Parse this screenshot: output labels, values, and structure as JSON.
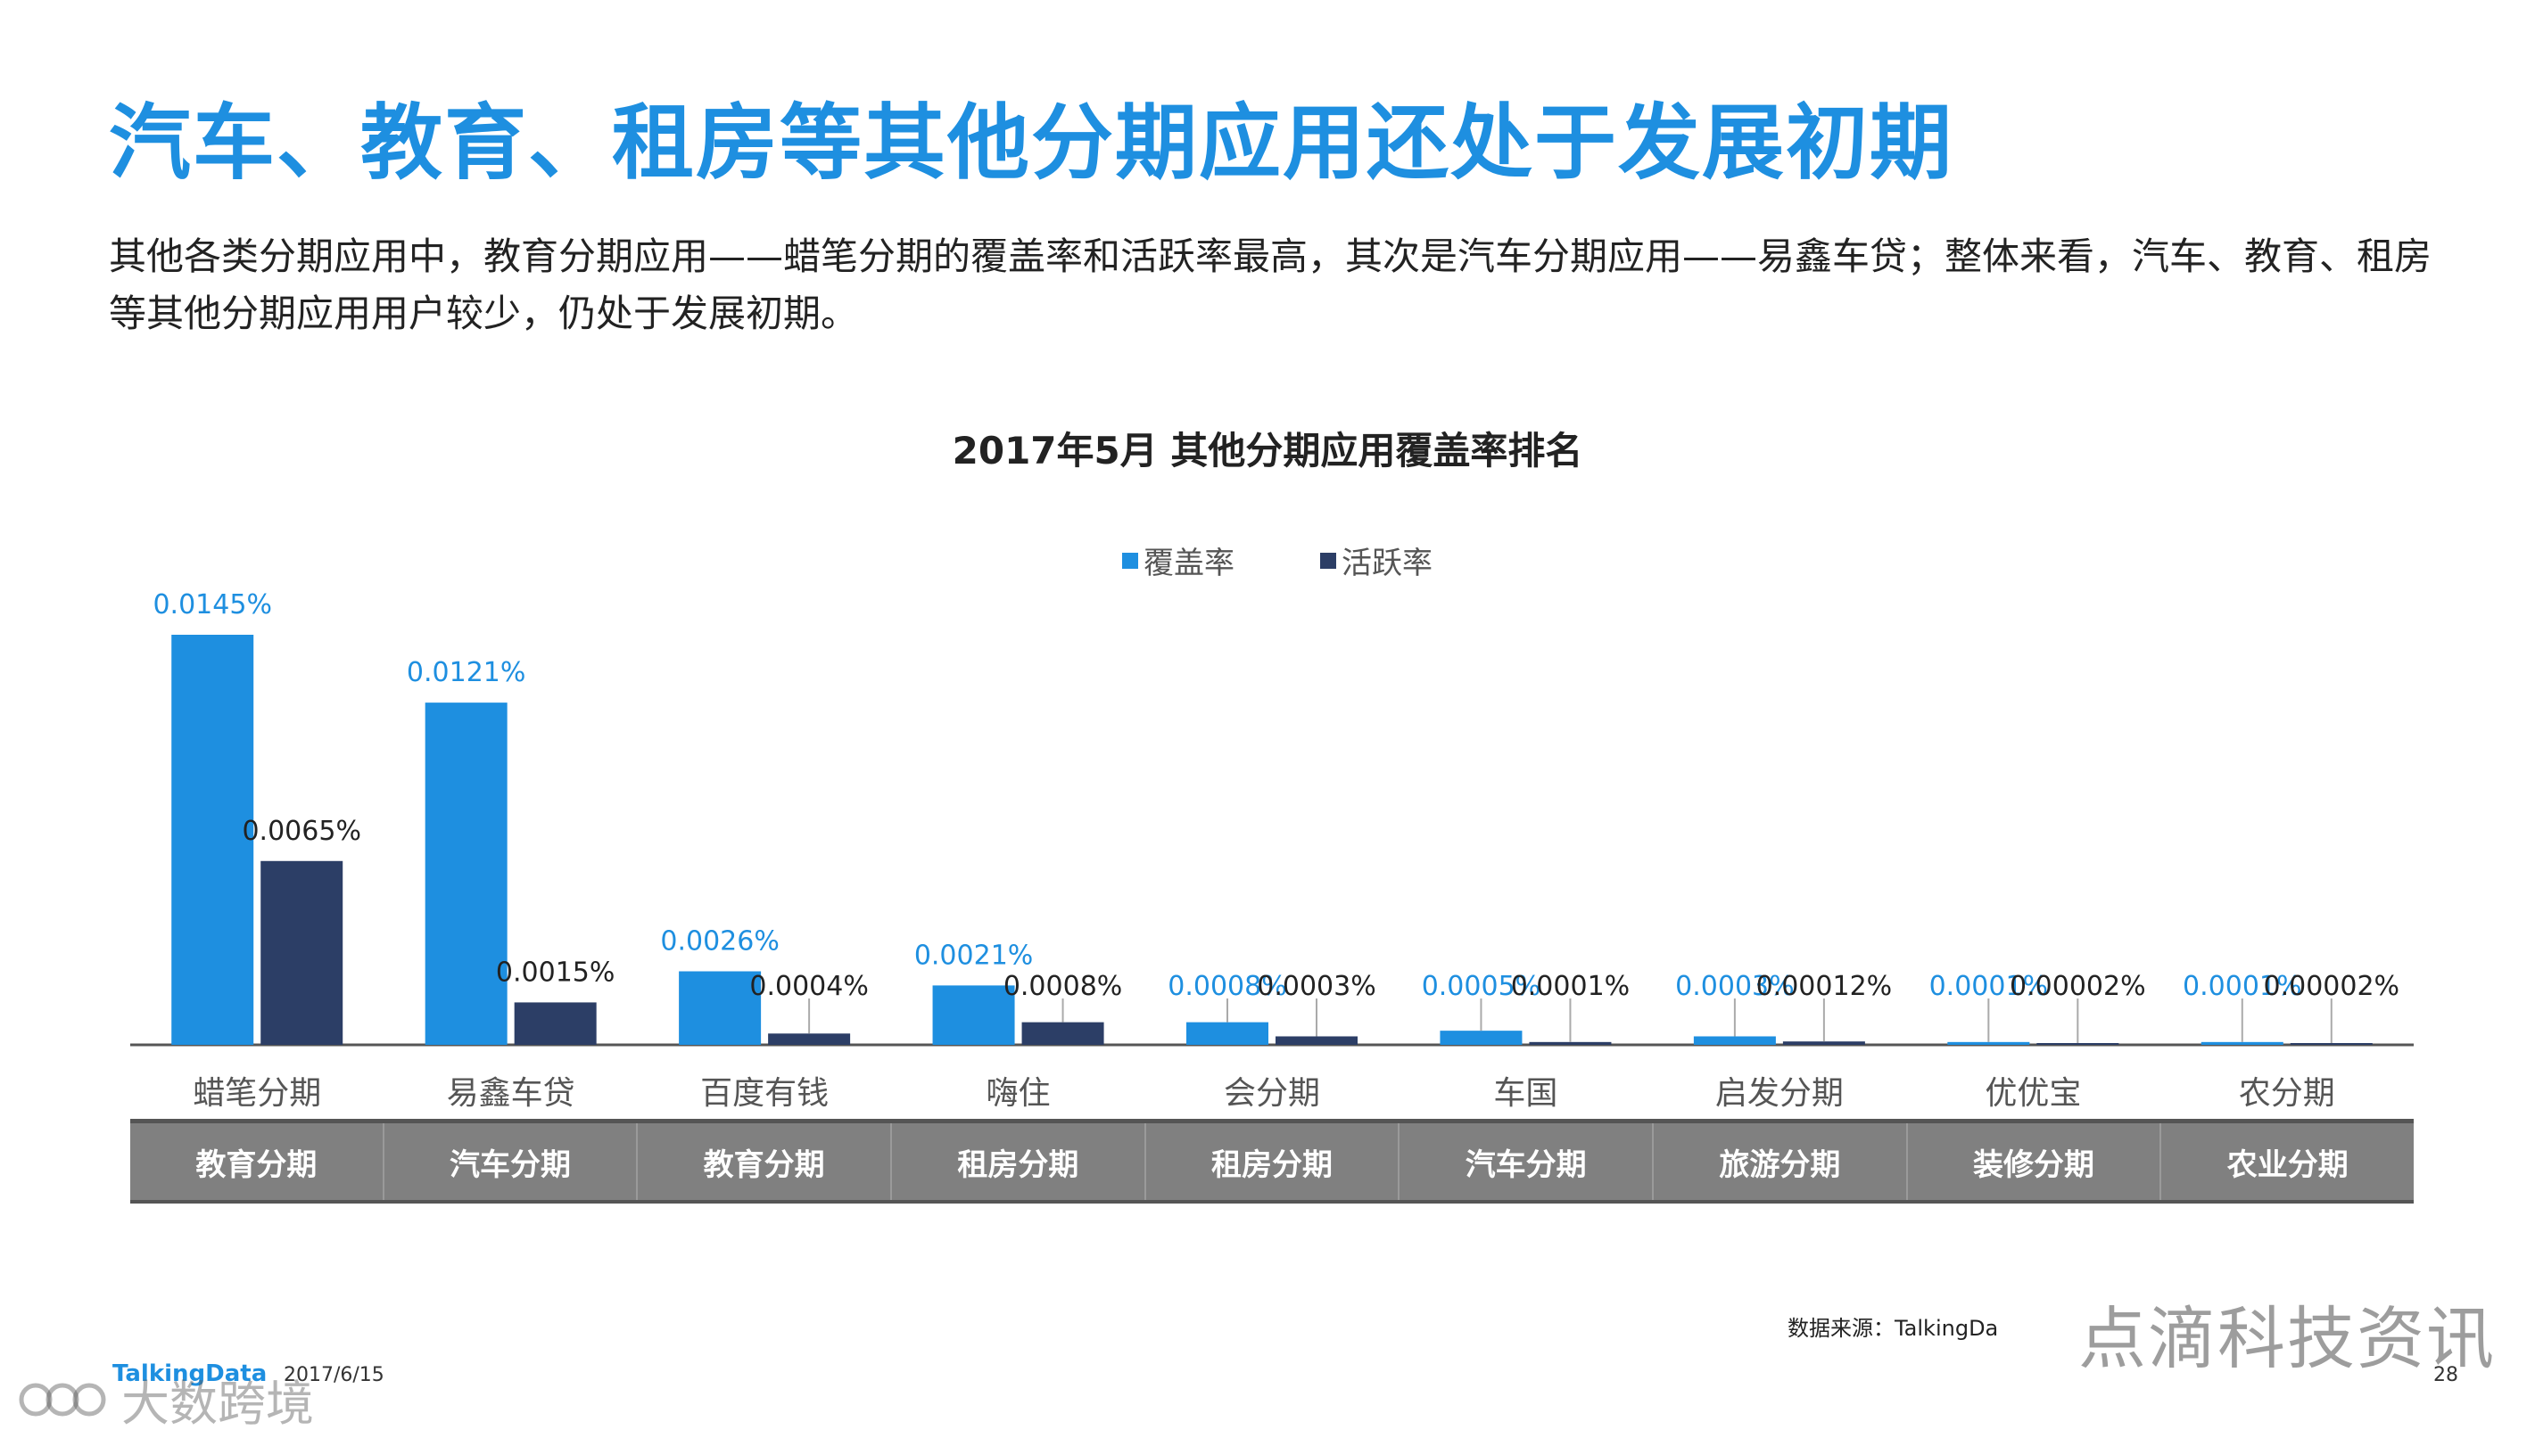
{
  "header": {
    "title": "汽车、教育、租房等其他分期应用还处于发展初期",
    "intro": "其他各类分期应用中，教育分期应用——蜡笔分期的覆盖率和活跃率最高，其次是汽车分期应用——易鑫车贷；整体来看，汽车、教育、租房等其他分期应用用户较少，仍处于发展初期。"
  },
  "colors": {
    "coverage": "#1e8fe0",
    "activity": "#2c3e66",
    "title": "#1e8fe0",
    "category_bg": "#808080"
  },
  "chart_data": {
    "type": "bar",
    "title": "2017年5月 其他分期应用覆盖率排名",
    "categories": [
      "蜡笔分期",
      "易鑫车贷",
      "百度有钱",
      "嗨住",
      "会分期",
      "车国",
      "启发分期",
      "优优宝",
      "农分期"
    ],
    "groups": [
      "教育分期",
      "汽车分期",
      "教育分期",
      "租房分期",
      "租房分期",
      "汽车分期",
      "旅游分期",
      "装修分期",
      "农业分期"
    ],
    "series": [
      {
        "name": "覆盖率",
        "values": [
          0.0145,
          0.0121,
          0.0026,
          0.0021,
          0.0008,
          0.0005,
          0.0003,
          0.0001,
          0.0001
        ],
        "labels": [
          "0.0145%",
          "0.0121%",
          "0.0026%",
          "0.0021%",
          "0.0008%",
          "0.0005%",
          "0.0003%",
          "0.0001%",
          "0.0001%"
        ]
      },
      {
        "name": "活跃率",
        "values": [
          0.0065,
          0.0015,
          0.0004,
          0.0008,
          0.0003,
          0.0001,
          0.00012,
          2e-05,
          2e-05
        ],
        "labels": [
          "0.0065%",
          "0.0015%",
          "0.0004%",
          "0.0008%",
          "0.0003%",
          "0.0001%",
          "0.00012%",
          "0.00002%",
          "0.00002%"
        ]
      }
    ],
    "legend_position": "top-center",
    "grid": false
  },
  "footer": {
    "source": "数据来源：TalkingDa",
    "brand": "TalkingData",
    "date": "2017/6/15",
    "page": "28",
    "watermark_right": "点滴科技资讯",
    "watermark_left": "大数跨境"
  }
}
